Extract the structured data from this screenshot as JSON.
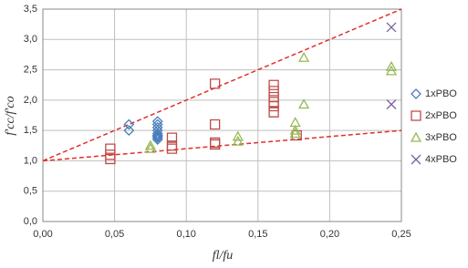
{
  "chart_data": {
    "type": "scatter",
    "x_label": "fl/fu",
    "y_label": "f'cc/f'co",
    "xlim": [
      0,
      0.25
    ],
    "ylim": [
      0,
      3.5
    ],
    "xticks": [
      {
        "value": 0,
        "label": "0,00"
      },
      {
        "value": 0.05,
        "label": "0,05"
      },
      {
        "value": 0.1,
        "label": "0,10"
      },
      {
        "value": 0.15,
        "label": "0,15"
      },
      {
        "value": 0.2,
        "label": "0,20"
      },
      {
        "value": 0.25,
        "label": "0,25"
      }
    ],
    "yticks": [
      {
        "value": 0,
        "label": "0,0"
      },
      {
        "value": 0.5,
        "label": "0,5"
      },
      {
        "value": 1,
        "label": "1,0"
      },
      {
        "value": 1.5,
        "label": "1,5"
      },
      {
        "value": 2,
        "label": "2,0"
      },
      {
        "value": 2.5,
        "label": "2,5"
      },
      {
        "value": 3,
        "label": "3,0"
      },
      {
        "value": 3.5,
        "label": "3,5"
      }
    ],
    "grid": true,
    "legend": "right",
    "reference_lines": [
      {
        "color": "#e0302c",
        "x": [
          0,
          0.25
        ],
        "values": [
          1,
          3.5
        ]
      },
      {
        "color": "#e0302c",
        "x": [
          0,
          0.25
        ],
        "values": [
          1,
          1.5
        ]
      }
    ],
    "series": [
      {
        "name": "1xPBO",
        "color": "#4a7ebb",
        "marker": "diamond",
        "x": [
          0.06,
          0.06,
          0.08,
          0.08,
          0.08,
          0.08,
          0.08,
          0.08,
          0.08,
          0.08,
          0.08
        ],
        "values": [
          1.6,
          1.5,
          1.65,
          1.6,
          1.55,
          1.5,
          1.45,
          1.42,
          1.4,
          1.38,
          1.35
        ]
      },
      {
        "name": "2xPBO",
        "color": "#be4b48",
        "marker": "square",
        "x": [
          0.047,
          0.047,
          0.047,
          0.09,
          0.09,
          0.09,
          0.12,
          0.12,
          0.12,
          0.12,
          0.161,
          0.161,
          0.161,
          0.161,
          0.161,
          0.161,
          0.177
        ],
        "values": [
          1.2,
          1.1,
          1.03,
          1.38,
          1.25,
          1.2,
          2.27,
          1.6,
          1.3,
          1.27,
          2.25,
          2.15,
          2.05,
          1.97,
          1.9,
          1.8,
          1.42
        ]
      },
      {
        "name": "3xPBO",
        "color": "#98b954",
        "marker": "triangle",
        "x": [
          0.075,
          0.075,
          0.136,
          0.136,
          0.176,
          0.176,
          0.176,
          0.182,
          0.182,
          0.243,
          0.243
        ],
        "values": [
          1.25,
          1.2,
          1.4,
          1.32,
          1.63,
          1.5,
          1.45,
          2.7,
          1.93,
          2.55,
          2.48
        ]
      },
      {
        "name": "4xPBO",
        "color": "#7d60a0",
        "marker": "cross",
        "x": [
          0.243,
          0.243
        ],
        "values": [
          3.2,
          1.93
        ]
      }
    ]
  }
}
